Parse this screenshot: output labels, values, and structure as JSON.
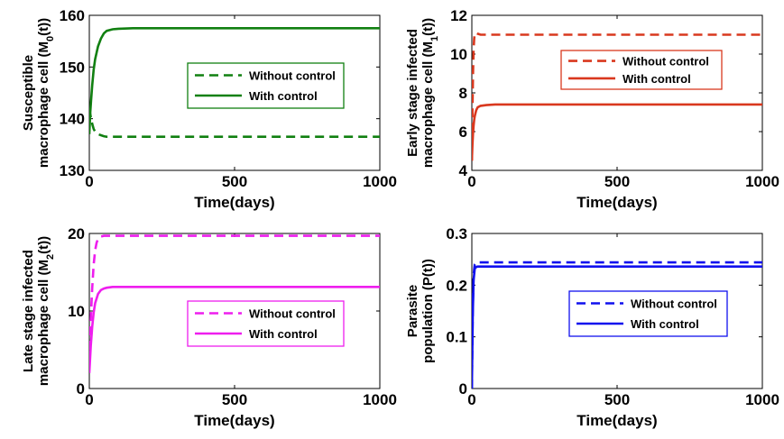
{
  "chart_data": [
    {
      "type": "line",
      "panel": "top-left",
      "ylabel_lines": [
        "Susceptible",
        "macrophage cell (M",
        "0",
        "(t))"
      ],
      "xlabel": "Time(days)",
      "xlim": [
        0,
        1000
      ],
      "ylim": [
        130,
        160
      ],
      "xticks": [
        0,
        500,
        1000
      ],
      "yticks": [
        130,
        140,
        150,
        160
      ],
      "color": "#118011",
      "legend": {
        "position": "center-right"
      },
      "series": [
        {
          "name": "Without control",
          "style": "dashed",
          "x": [
            0,
            3,
            6,
            10,
            15,
            20,
            30,
            40,
            50,
            60,
            80,
            100,
            1000
          ],
          "y": [
            142,
            141,
            140,
            139,
            138,
            137.5,
            137,
            136.8,
            136.6,
            136.5,
            136.5,
            136.5,
            136.5
          ]
        },
        {
          "name": "With control",
          "style": "solid",
          "x": [
            0,
            3,
            6,
            10,
            15,
            20,
            30,
            40,
            50,
            60,
            80,
            100,
            150,
            1000
          ],
          "y": [
            137,
            141,
            143.5,
            146.5,
            149.5,
            151.5,
            154,
            155.5,
            156.5,
            157,
            157.3,
            157.4,
            157.5,
            157.5
          ]
        }
      ]
    },
    {
      "type": "line",
      "panel": "top-right",
      "ylabel_lines": [
        "Early stage infected",
        "macrophage cell (M",
        "1",
        "(t))"
      ],
      "xlabel": "Time(days)",
      "xlim": [
        0,
        1000
      ],
      "ylim": [
        4,
        12
      ],
      "xticks": [
        0,
        500,
        1000
      ],
      "yticks": [
        4,
        6,
        8,
        10,
        12
      ],
      "color": "#d9381e",
      "legend": {
        "position": "top-right"
      },
      "series": [
        {
          "name": "Without control",
          "style": "dashed",
          "x": [
            0,
            2,
            4,
            6,
            8,
            10,
            15,
            20,
            30,
            1000
          ],
          "y": [
            4.5,
            7,
            9,
            10.2,
            10.8,
            11.05,
            11.1,
            11.05,
            11,
            11
          ]
        },
        {
          "name": "With control",
          "style": "solid",
          "x": [
            0,
            2,
            4,
            6,
            8,
            10,
            15,
            20,
            30,
            50,
            80,
            1000
          ],
          "y": [
            4.5,
            5.3,
            5.9,
            6.3,
            6.6,
            6.8,
            7.1,
            7.25,
            7.33,
            7.37,
            7.4,
            7.4
          ]
        }
      ]
    },
    {
      "type": "line",
      "panel": "bottom-left",
      "ylabel_lines": [
        "Late stage infected",
        "macrophage cell (M",
        "2",
        "(t))"
      ],
      "xlabel": "Time(days)",
      "xlim": [
        0,
        1000
      ],
      "ylim": [
        0,
        20
      ],
      "xticks": [
        0,
        500,
        1000
      ],
      "yticks": [
        0,
        10,
        20
      ],
      "color": "#ee1eee",
      "legend": {
        "position": "center-right"
      },
      "series": [
        {
          "name": "Without control",
          "style": "dashed",
          "x": [
            0,
            5,
            10,
            15,
            20,
            25,
            30,
            40,
            50,
            1000
          ],
          "y": [
            5,
            9,
            13,
            16,
            17.8,
            18.8,
            19.3,
            19.6,
            19.7,
            19.7
          ]
        },
        {
          "name": "With control",
          "style": "solid",
          "x": [
            0,
            5,
            10,
            15,
            20,
            30,
            40,
            50,
            60,
            80,
            100,
            1000
          ],
          "y": [
            2,
            5.5,
            8,
            9.8,
            11,
            12.2,
            12.7,
            12.9,
            13,
            13.1,
            13.1,
            13.1
          ]
        }
      ]
    },
    {
      "type": "line",
      "panel": "bottom-right",
      "ylabel_lines": [
        "Parasite",
        "population (P(t))"
      ],
      "xlabel": "Time(days)",
      "xlim": [
        0,
        1000
      ],
      "ylim": [
        0,
        0.3
      ],
      "xticks": [
        0,
        500,
        1000
      ],
      "yticks": [
        0,
        0.1,
        0.2,
        0.3
      ],
      "color": "#1010ee",
      "legend": {
        "position": "center-right"
      },
      "series": [
        {
          "name": "Without control",
          "style": "dashed",
          "x": [
            0,
            3,
            6,
            10,
            15,
            20,
            30,
            1000
          ],
          "y": [
            0,
            0.15,
            0.22,
            0.24,
            0.243,
            0.244,
            0.244,
            0.244
          ]
        },
        {
          "name": "With control",
          "style": "solid",
          "x": [
            0,
            3,
            6,
            10,
            15,
            20,
            30,
            1000
          ],
          "y": [
            0,
            0.14,
            0.21,
            0.232,
            0.235,
            0.236,
            0.236,
            0.236
          ]
        }
      ]
    }
  ]
}
